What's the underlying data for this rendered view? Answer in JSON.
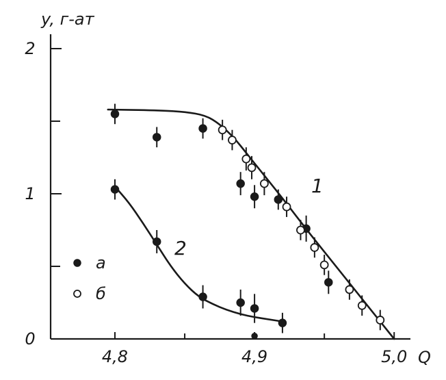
{
  "chart_data": {
    "type": "scatter",
    "ylabel": "y, г-ат",
    "xlabel": "Q",
    "xlim": [
      4.75,
      5.02
    ],
    "ylim": [
      0,
      2
    ],
    "x_ticks": [
      {
        "value": 4.8,
        "label": "4,8"
      },
      {
        "value": 4.9,
        "label": "4,9"
      },
      {
        "value": 5.0,
        "label": "5,0"
      }
    ],
    "x_minor_ticks": [
      4.85,
      4.95
    ],
    "y_ticks": [
      {
        "value": 0,
        "label": "0"
      },
      {
        "value": 1,
        "label": "1"
      },
      {
        "value": 2,
        "label": "2"
      }
    ],
    "y_minor_ticks": [
      0.5,
      1.5
    ],
    "legend": {
      "placement": "lower-left",
      "entries": [
        {
          "marker": "filled",
          "label": "а"
        },
        {
          "marker": "open",
          "label": "б"
        }
      ]
    },
    "series": [
      {
        "marker": "filled",
        "points": [
          {
            "x": 4.8,
            "y": 1.55,
            "err": 0.07
          },
          {
            "x": 4.83,
            "y": 1.39,
            "err": 0.07
          },
          {
            "x": 4.863,
            "y": 1.45,
            "err": 0.07
          },
          {
            "x": 4.89,
            "y": 1.07,
            "err": 0.08
          },
          {
            "x": 4.9,
            "y": 0.98,
            "err": 0.08
          },
          {
            "x": 4.917,
            "y": 0.96,
            "err": 0.07
          },
          {
            "x": 4.937,
            "y": 0.76,
            "err": 0.09
          },
          {
            "x": 4.953,
            "y": 0.39,
            "err": 0.08
          },
          {
            "x": 4.8,
            "y": 1.03,
            "err": 0.07
          },
          {
            "x": 4.83,
            "y": 0.67,
            "err": 0.08
          },
          {
            "x": 4.863,
            "y": 0.29,
            "err": 0.08
          },
          {
            "x": 4.89,
            "y": 0.25,
            "err": 0.09
          },
          {
            "x": 4.9,
            "y": 0.21,
            "err": 0.1
          },
          {
            "x": 4.92,
            "y": 0.11,
            "err": 0.07
          },
          {
            "x": 4.9,
            "y": 0.02,
            "err": 0
          }
        ]
      },
      {
        "marker": "open",
        "points": [
          {
            "x": 4.877,
            "y": 1.44,
            "err": 0.07
          },
          {
            "x": 4.884,
            "y": 1.37,
            "err": 0.07
          },
          {
            "x": 4.894,
            "y": 1.24,
            "err": 0.08
          },
          {
            "x": 4.898,
            "y": 1.18,
            "err": 0.08
          },
          {
            "x": 4.907,
            "y": 1.07,
            "err": 0.08
          },
          {
            "x": 4.923,
            "y": 0.91,
            "err": 0.07
          },
          {
            "x": 4.933,
            "y": 0.75,
            "err": 0.07
          },
          {
            "x": 4.943,
            "y": 0.63,
            "err": 0.07
          },
          {
            "x": 4.95,
            "y": 0.51,
            "err": 0.07
          },
          {
            "x": 4.968,
            "y": 0.34,
            "err": 0.07
          },
          {
            "x": 4.977,
            "y": 0.23,
            "err": 0.07
          },
          {
            "x": 4.99,
            "y": 0.13,
            "err": 0.07
          }
        ]
      }
    ],
    "curves": [
      {
        "label": "1",
        "label_at": {
          "x": 4.945,
          "y": 1.01
        },
        "points": [
          [
            4.795,
            1.58
          ],
          [
            4.83,
            1.575
          ],
          [
            4.85,
            1.565
          ],
          [
            4.865,
            1.54
          ],
          [
            4.875,
            1.48
          ],
          [
            4.885,
            1.39
          ],
          [
            4.895,
            1.27
          ],
          [
            4.905,
            1.15
          ],
          [
            4.92,
            0.97
          ],
          [
            4.94,
            0.72
          ],
          [
            4.96,
            0.48
          ],
          [
            4.98,
            0.24
          ],
          [
            5.0,
            0.0
          ]
        ]
      },
      {
        "label": "2",
        "label_at": {
          "x": 4.847,
          "y": 0.58
        },
        "points": [
          [
            4.8,
            1.05
          ],
          [
            4.81,
            0.94
          ],
          [
            4.82,
            0.8
          ],
          [
            4.83,
            0.65
          ],
          [
            4.84,
            0.5
          ],
          [
            4.85,
            0.38
          ],
          [
            4.86,
            0.29
          ],
          [
            4.87,
            0.24
          ],
          [
            4.88,
            0.2
          ],
          [
            4.89,
            0.17
          ],
          [
            4.9,
            0.15
          ],
          [
            4.91,
            0.135
          ],
          [
            4.92,
            0.12
          ]
        ]
      }
    ]
  }
}
